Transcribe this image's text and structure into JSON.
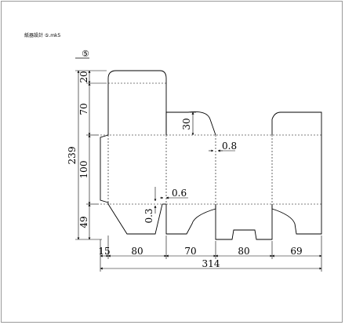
{
  "file_title": "紙器設計 ⑤.mk5",
  "figure_number": "⑤",
  "dimensions": {
    "top_tuck_height": "20",
    "top_flap_height": "70",
    "dust_flap_height": "30",
    "total_height": "239",
    "body_height": "100",
    "bottom_height": "49",
    "glue_flap_width": "15",
    "panel1_width": "80",
    "panel2_width": "70",
    "panel3_width": "80",
    "panel4_width": "69",
    "total_width": "314",
    "gap_upper": "0.8",
    "gap_lower": "0.6",
    "gap_vertical": "0.3"
  },
  "colors": {
    "cut_line": "#000000",
    "crease_line": "#000000",
    "frame": "#9a9a9a"
  }
}
